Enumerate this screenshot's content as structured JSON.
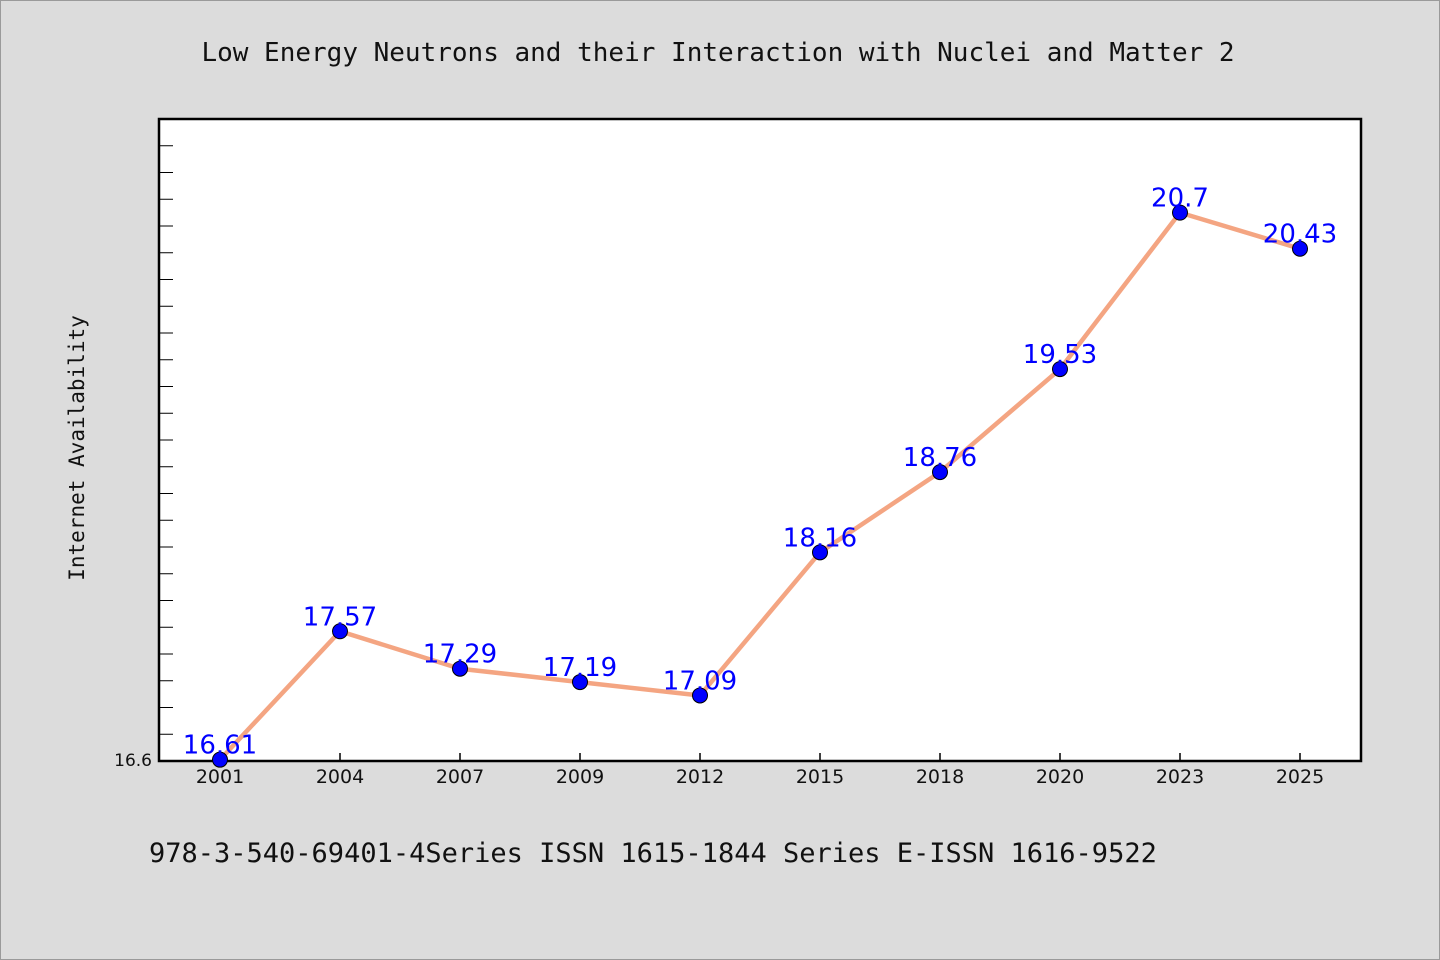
{
  "colors": {
    "background": "#dcdcdc",
    "plot_background": "#ffffff",
    "line": "#f4a582",
    "marker": "#0000ff",
    "data_label": "#0000ff"
  },
  "chart_data": {
    "type": "line",
    "title": "Low Energy Neutrons and their Interaction with Nuclei and Matter 2",
    "ylabel": "Internet Availability",
    "xlabel": "",
    "categories": [
      "2001",
      "2004",
      "2007",
      "2009",
      "2012",
      "2015",
      "2018",
      "2020",
      "2023",
      "2025"
    ],
    "series": [
      {
        "values": [
          16.61,
          17.57,
          17.29,
          17.19,
          17.09,
          18.16,
          18.76,
          19.53,
          20.7,
          20.43
        ],
        "labels": [
          "16.61",
          "17.57",
          "17.29",
          "17.19",
          "17.09",
          "18.16",
          "18.76",
          "19.53",
          "20.7",
          "20.43"
        ]
      }
    ],
    "ylim": [
      16.6,
      21.4
    ],
    "y_tick_labels": [
      "16.6"
    ],
    "grid": false,
    "legend": "none",
    "footer": "978-3-540-69401-4Series ISSN 1615-1844 Series E-ISSN 1616-9522"
  }
}
